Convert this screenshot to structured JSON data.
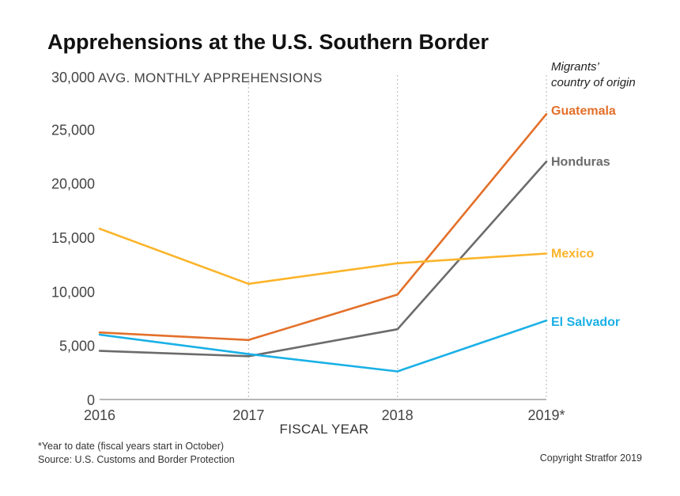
{
  "chart_data": {
    "type": "line",
    "title": "Apprehensions at the U.S. Southern Border",
    "ylabel": "AVG. MONTHLY APPREHENSIONS",
    "xlabel": "FISCAL YEAR",
    "x": [
      "2016",
      "2017",
      "2018",
      "2019*"
    ],
    "ylim": [
      0,
      30000
    ],
    "yticks": [
      0,
      5000,
      10000,
      15000,
      20000,
      25000,
      30000
    ],
    "ytick_labels": [
      "0",
      "5,000",
      "10,000",
      "15,000",
      "20,000",
      "25,000",
      "30,000"
    ],
    "grid": "vertical dotted",
    "legend_title": [
      "Migrants’",
      "country of origin"
    ],
    "series": [
      {
        "name": "Guatemala",
        "color": "#e3702a",
        "values": [
          6200,
          5500,
          9700,
          26400
        ]
      },
      {
        "name": "Honduras",
        "color": "#6b6b6b",
        "values": [
          4500,
          4000,
          6500,
          22000
        ]
      },
      {
        "name": "Mexico",
        "color": "#fbb42a",
        "values": [
          15800,
          10700,
          12600,
          13500
        ]
      },
      {
        "name": "El Salvador",
        "color": "#1ab0e6",
        "values": [
          6000,
          4200,
          2600,
          7300
        ]
      }
    ]
  },
  "footnotes": {
    "note": "*Year to date (fiscal years start in October)",
    "source": "Source: U.S. Customs and Border Protection",
    "copyright": "Copyright Stratfor 2019"
  }
}
